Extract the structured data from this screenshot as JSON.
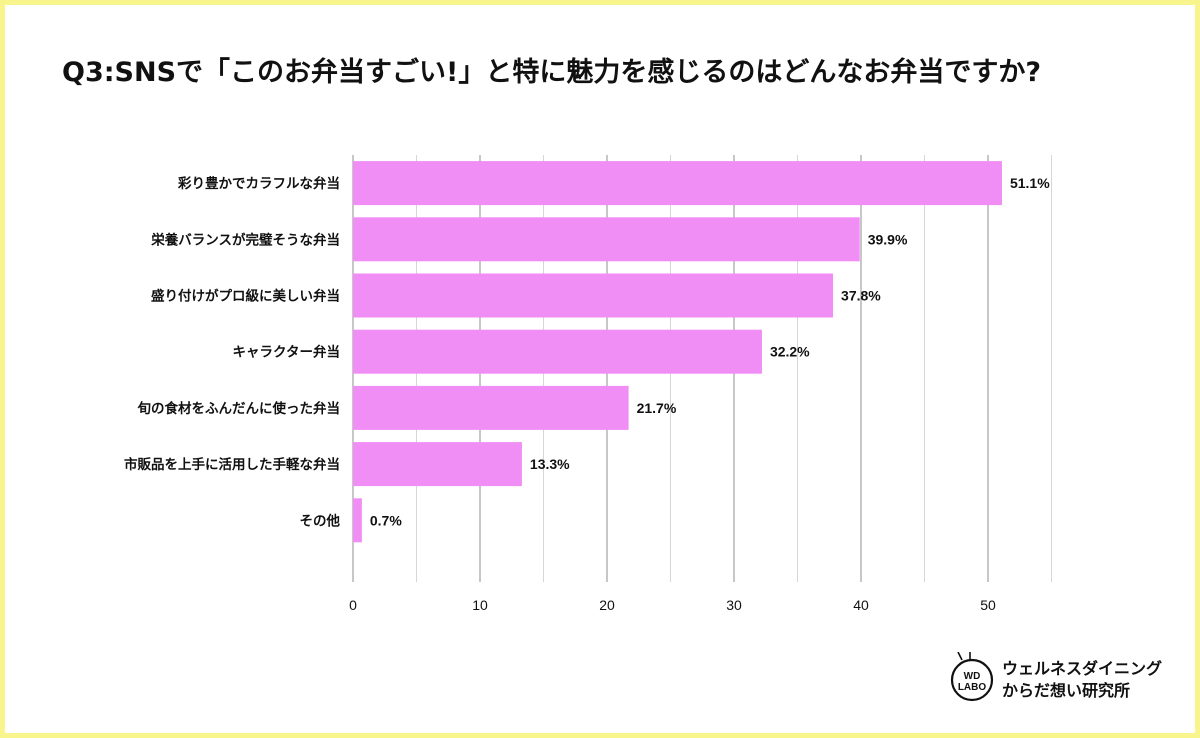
{
  "title": "Q3:SNSで「このお弁当すごい!」と特に魅力を感じるのはどんなお弁当ですか?",
  "colors": {
    "bar": "#f08ef5",
    "grid": "#8f8f8f",
    "grid_minor": "#d6d6d6",
    "frame": "#f7f58c",
    "text": "#111111"
  },
  "chart_data": {
    "type": "bar",
    "orientation": "horizontal",
    "title": "Q3:SNSで「このお弁当すごい!」と特に魅力を感じるのはどんなお弁当ですか?",
    "xlabel": "",
    "ylabel": "",
    "xlim": [
      0,
      55
    ],
    "xticks": [
      0,
      10,
      20,
      30,
      40,
      50
    ],
    "categories": [
      "彩り豊かでカラフルな弁当",
      "栄養バランスが完璧そうな弁当",
      "盛り付けがプロ級に美しい弁当",
      "キャラクター弁当",
      "旬の食材をふんだんに使った弁当",
      "市販品を上手に活用した手軽な弁当",
      "その他"
    ],
    "values": [
      51.1,
      39.9,
      37.8,
      32.2,
      21.7,
      13.3,
      0.7
    ],
    "value_labels": [
      "51.1%",
      "39.9%",
      "37.8%",
      "32.2%",
      "21.7%",
      "13.3%",
      "0.7%"
    ],
    "grid": true
  },
  "logo": {
    "badge_line1": "WD",
    "badge_line2": "LABO",
    "line1": "ウェルネスダイニング",
    "line2": "からだ想い研究所"
  }
}
